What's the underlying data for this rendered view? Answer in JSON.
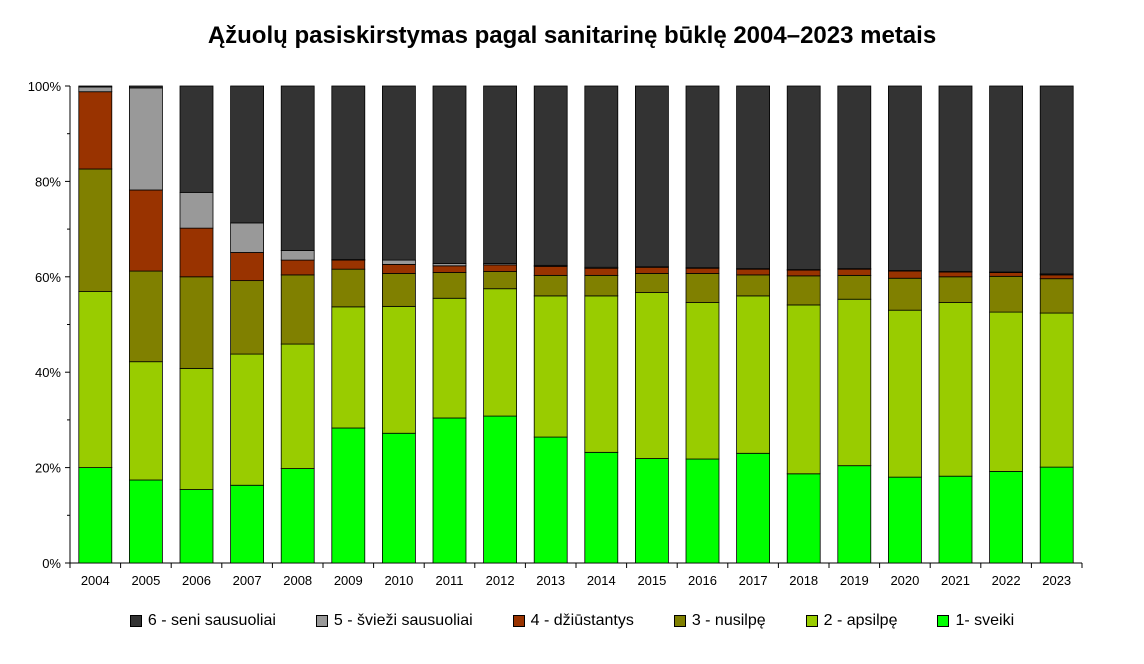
{
  "chart_data": {
    "type": "bar",
    "stacked": true,
    "normalized": true,
    "title": "Ąžuolų pasiskirstymas pagal sanitarinę būklę 2004–2023 metais",
    "xlabel": "",
    "ylabel": "",
    "ylim": [
      0,
      100
    ],
    "y_ticks": [
      "0%",
      "20%",
      "40%",
      "60%",
      "80%",
      "100%"
    ],
    "y_tick_values": [
      0,
      20,
      40,
      60,
      80,
      100
    ],
    "grid": false,
    "legend_position": "bottom",
    "categories": [
      "2004",
      "2005",
      "2006",
      "2007",
      "2008",
      "2009",
      "2010",
      "2011",
      "2012",
      "2013",
      "2014",
      "2015",
      "2016",
      "2017",
      "2018",
      "2019",
      "2020",
      "2021",
      "2022",
      "2023"
    ],
    "series": [
      {
        "name": "1- sveiki",
        "color": "#00ff00",
        "values": [
          20.0,
          17.4,
          15.4,
          16.3,
          19.8,
          28.3,
          27.2,
          30.4,
          30.8,
          26.4,
          23.2,
          21.9,
          21.8,
          23.0,
          18.7,
          20.4,
          18.0,
          18.2,
          19.2,
          20.1
        ]
      },
      {
        "name": "2 - apsilpę",
        "color": "#99cc00",
        "values": [
          36.9,
          24.8,
          25.4,
          27.5,
          26.1,
          25.4,
          26.6,
          25.1,
          26.7,
          29.6,
          32.8,
          34.8,
          32.8,
          33.0,
          35.4,
          34.9,
          35.0,
          36.4,
          33.4,
          32.3
        ]
      },
      {
        "name": "3 - nusilpę",
        "color": "#808000",
        "values": [
          25.7,
          19.0,
          19.2,
          15.4,
          14.5,
          7.9,
          6.9,
          5.4,
          3.6,
          4.3,
          4.3,
          4.0,
          6.1,
          4.4,
          6.1,
          5.0,
          6.7,
          5.4,
          7.5,
          7.2
        ]
      },
      {
        "name": "4 - džiūstantys",
        "color": "#993300",
        "values": [
          16.2,
          17.0,
          10.2,
          5.9,
          3.1,
          1.9,
          1.9,
          1.4,
          1.4,
          1.9,
          1.5,
          1.3,
          1.1,
          1.2,
          1.2,
          1.3,
          1.5,
          1.0,
          0.8,
          0.8
        ]
      },
      {
        "name": "5 - švieži sausuoliai",
        "color": "#999999",
        "values": [
          1.0,
          21.4,
          7.5,
          6.2,
          2.0,
          0.1,
          0.9,
          0.5,
          0.3,
          0.2,
          0.2,
          0.1,
          0.1,
          0.1,
          0.1,
          0.1,
          0.1,
          0.1,
          0.1,
          0.2
        ]
      },
      {
        "name": "6 - seni sausuoliai",
        "color": "#333333",
        "values": [
          0.2,
          0.4,
          22.3,
          28.7,
          34.5,
          36.4,
          36.5,
          37.2,
          37.2,
          37.6,
          38.0,
          37.9,
          38.1,
          38.3,
          38.5,
          38.3,
          38.7,
          38.9,
          39.0,
          39.4
        ]
      }
    ],
    "legend_order": [
      "6 - seni sausuoliai",
      "5 - švieži sausuoliai",
      "4 - džiūstantys",
      "3 - nusilpę",
      "2 - apsilpę",
      "1- sveiki"
    ]
  }
}
